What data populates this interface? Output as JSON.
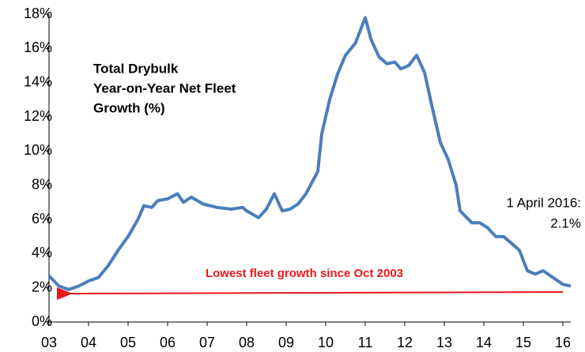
{
  "chart_data": {
    "type": "line",
    "title": [
      "Total Drybulk",
      "Year-on-Year Net Fleet",
      "Growth (%)"
    ],
    "annotations": [
      [
        "1 April 2016:",
        "2.1%"
      ],
      "Lowest fleet growth since Oct 2003"
    ],
    "color": "#4a7ebb",
    "x": [
      2003.0,
      2003.25,
      2003.5,
      2003.75,
      2004.0,
      2004.25,
      2004.5,
      2004.75,
      2005.0,
      2005.25,
      2005.4,
      2005.6,
      2005.75,
      2006.0,
      2006.25,
      2006.4,
      2006.6,
      2006.9,
      2007.25,
      2007.6,
      2007.9,
      2008.0,
      2008.3,
      2008.5,
      2008.7,
      2008.9,
      2009.1,
      2009.3,
      2009.5,
      2009.8,
      2009.9,
      2010.1,
      2010.3,
      2010.5,
      2010.75,
      2011.0,
      2011.15,
      2011.35,
      2011.55,
      2011.75,
      2011.9,
      2012.1,
      2012.3,
      2012.5,
      2012.7,
      2012.9,
      2013.1,
      2013.3,
      2013.4,
      2013.7,
      2013.9,
      2014.1,
      2014.3,
      2014.5,
      2014.7,
      2014.9,
      2015.1,
      2015.3,
      2015.5,
      2015.75,
      2016.0,
      2016.2
    ],
    "values": [
      2.7,
      2.1,
      1.9,
      2.1,
      2.4,
      2.6,
      3.3,
      4.2,
      5.0,
      6.0,
      6.8,
      6.7,
      7.1,
      7.2,
      7.5,
      7.0,
      7.3,
      6.9,
      6.7,
      6.6,
      6.7,
      6.5,
      6.1,
      6.6,
      7.5,
      6.5,
      6.6,
      6.9,
      7.5,
      8.8,
      11.0,
      13.0,
      14.5,
      15.6,
      16.3,
      17.8,
      16.5,
      15.5,
      15.1,
      15.2,
      14.8,
      15.0,
      15.6,
      14.6,
      12.5,
      10.5,
      9.5,
      8.0,
      6.5,
      5.8,
      5.8,
      5.5,
      5.0,
      5.0,
      4.6,
      4.2,
      3.0,
      2.8,
      3.0,
      2.6,
      2.2,
      2.1
    ],
    "xlim": [
      2003,
      2016.3
    ],
    "xticks": [
      {
        "value": 2003,
        "label": "03"
      },
      {
        "value": 2004,
        "label": "04"
      },
      {
        "value": 2005,
        "label": "05"
      },
      {
        "value": 2006,
        "label": "06"
      },
      {
        "value": 2007,
        "label": "07"
      },
      {
        "value": 2008,
        "label": "08"
      },
      {
        "value": 2009,
        "label": "09"
      },
      {
        "value": 2010,
        "label": "10"
      },
      {
        "value": 2011,
        "label": "11"
      },
      {
        "value": 2012,
        "label": "12"
      },
      {
        "value": 2013,
        "label": "13"
      },
      {
        "value": 2014,
        "label": "14"
      },
      {
        "value": 2015,
        "label": "15"
      },
      {
        "value": 2016,
        "label": "16"
      }
    ],
    "ylim": [
      0,
      18
    ],
    "yticks": [
      {
        "value": 0,
        "label": "0%"
      },
      {
        "value": 2,
        "label": "2%"
      },
      {
        "value": 4,
        "label": "4%"
      },
      {
        "value": 6,
        "label": "6%"
      },
      {
        "value": 8,
        "label": "8%"
      },
      {
        "value": 10,
        "label": "10%"
      },
      {
        "value": 12,
        "label": "12%"
      },
      {
        "value": 14,
        "label": "14%"
      },
      {
        "value": 16,
        "label": "16%"
      },
      {
        "value": 18,
        "label": "18%"
      }
    ],
    "grid": false
  }
}
